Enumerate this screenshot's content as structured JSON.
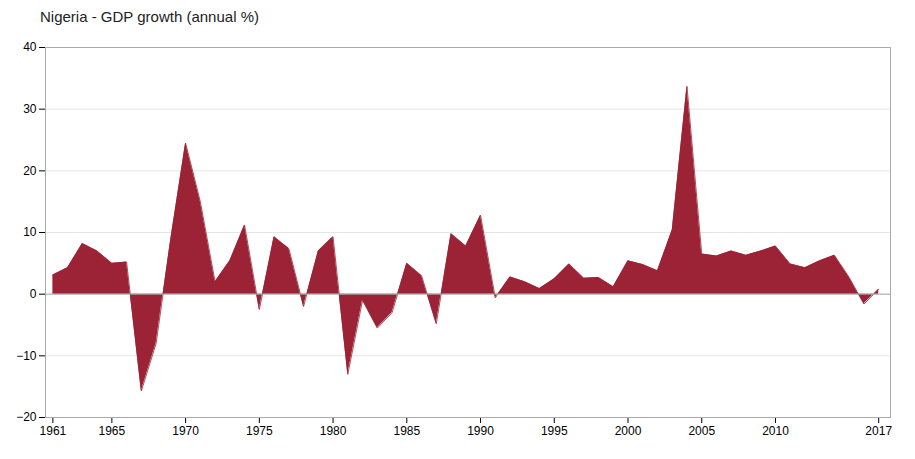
{
  "chart_data": {
    "type": "area",
    "title": "Nigeria - GDP growth (annual %)",
    "x": [
      1961,
      1962,
      1963,
      1964,
      1965,
      1966,
      1967,
      1968,
      1969,
      1970,
      1971,
      1972,
      1973,
      1974,
      1975,
      1976,
      1977,
      1978,
      1979,
      1980,
      1981,
      1982,
      1983,
      1984,
      1985,
      1986,
      1987,
      1988,
      1989,
      1990,
      1991,
      1992,
      1993,
      1994,
      1995,
      1996,
      1997,
      1998,
      1999,
      2000,
      2001,
      2002,
      2003,
      2004,
      2005,
      2006,
      2007,
      2008,
      2009,
      2010,
      2011,
      2012,
      2013,
      2014,
      2015,
      2016,
      2017
    ],
    "values": [
      3.1,
      4.3,
      8.2,
      7.0,
      5.0,
      5.2,
      -15.7,
      -8.0,
      9.0,
      24.5,
      15.0,
      2.0,
      5.4,
      11.2,
      -2.5,
      9.3,
      7.4,
      -2.0,
      7.0,
      9.3,
      -13.0,
      -1.0,
      -5.5,
      -3.0,
      5.0,
      3.0,
      -4.8,
      9.8,
      7.8,
      12.8,
      -0.6,
      2.8,
      2.0,
      0.9,
      2.5,
      4.9,
      2.6,
      2.7,
      1.2,
      5.4,
      4.8,
      3.8,
      10.4,
      33.7,
      6.5,
      6.2,
      7.0,
      6.3,
      7.0,
      7.8,
      4.9,
      4.3,
      5.4,
      6.3,
      2.7,
      -1.6,
      0.8
    ],
    "color": "#9b2335",
    "xlim": [
      1960.5,
      2017.8
    ],
    "xticks": [
      1961,
      1965,
      1970,
      1975,
      1980,
      1985,
      1990,
      1995,
      2000,
      2005,
      2010,
      2017
    ],
    "ylim": [
      -20,
      40
    ],
    "yticks": [
      -20,
      -10,
      0,
      10,
      20,
      30,
      40
    ],
    "grid": "y"
  }
}
